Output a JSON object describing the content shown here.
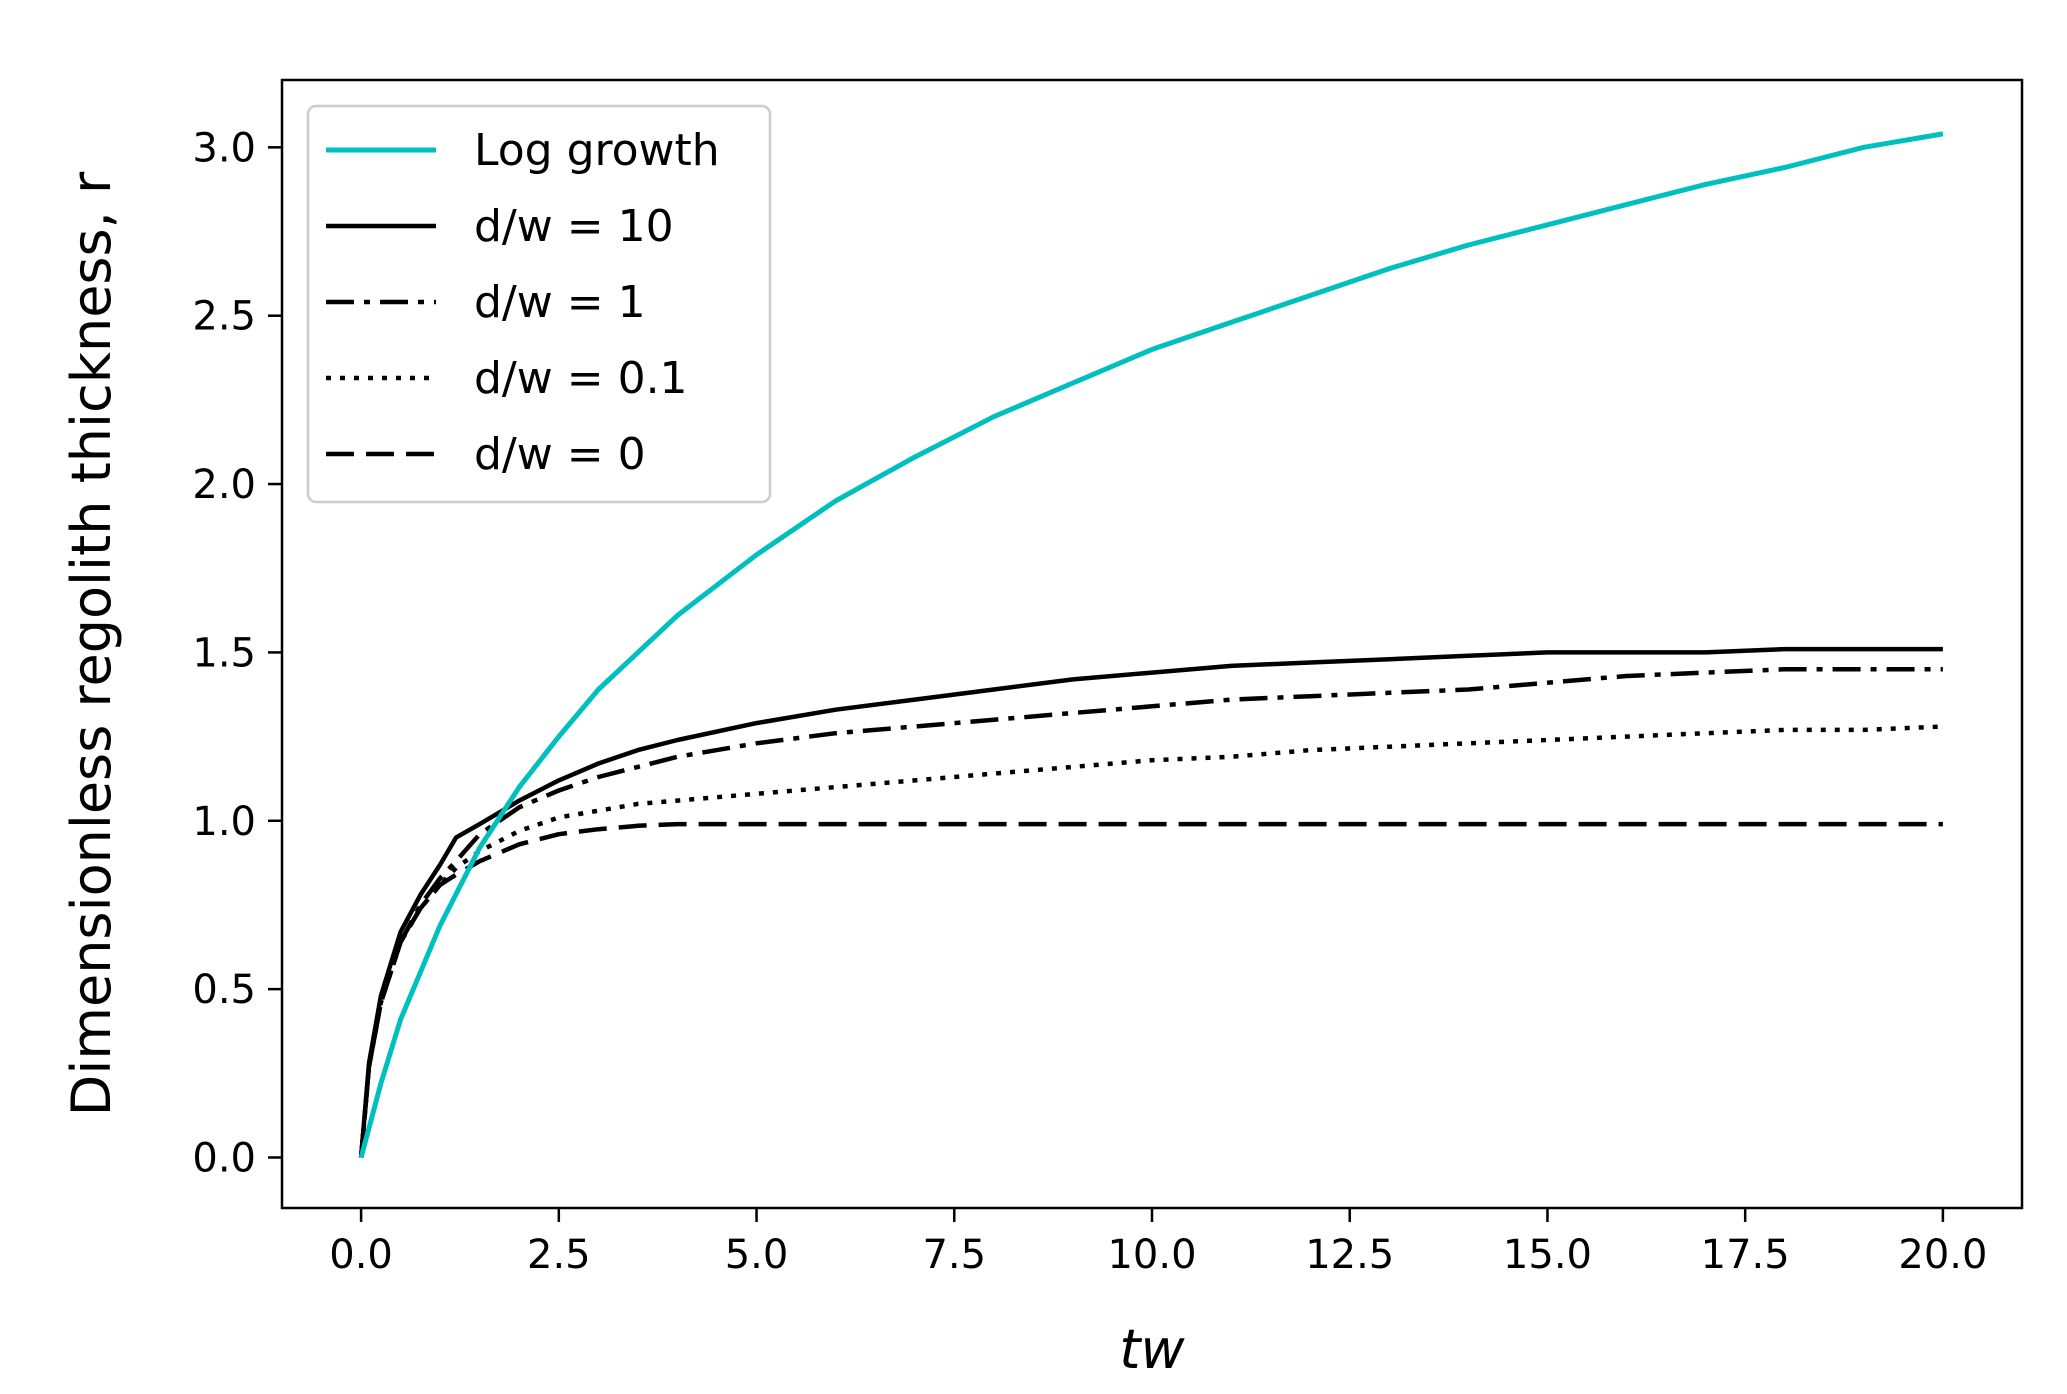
{
  "chart_data": {
    "type": "line",
    "title": "",
    "xlabel": "tw",
    "ylabel": "Dimensionless regolith thickness, r",
    "xlim": [
      -1.0,
      21.0
    ],
    "ylim": [
      -0.15,
      3.2
    ],
    "xticks": [
      0.0,
      2.5,
      5.0,
      7.5,
      10.0,
      12.5,
      15.0,
      17.5,
      20.0
    ],
    "xtick_labels": [
      "0.0",
      "2.5",
      "5.0",
      "7.5",
      "10.0",
      "12.5",
      "15.0",
      "17.5",
      "20.0"
    ],
    "yticks": [
      0.0,
      0.5,
      1.0,
      1.5,
      2.0,
      2.5,
      3.0
    ],
    "ytick_labels": [
      "0.0",
      "0.5",
      "1.0",
      "1.5",
      "2.0",
      "2.5",
      "3.0"
    ],
    "grid": false,
    "legend_position": "top-left",
    "series": [
      {
        "name": "Log growth",
        "color": "#00bfbf",
        "style": "solid",
        "x": [
          0,
          0.25,
          0.5,
          1,
          1.5,
          2,
          2.5,
          3,
          4,
          5,
          6,
          7,
          8,
          9,
          10,
          11,
          12,
          13,
          14,
          15,
          16,
          17,
          18,
          19,
          20
        ],
        "y": [
          0,
          0.22,
          0.41,
          0.69,
          0.92,
          1.1,
          1.25,
          1.39,
          1.61,
          1.79,
          1.95,
          2.08,
          2.2,
          2.3,
          2.4,
          2.48,
          2.56,
          2.64,
          2.71,
          2.77,
          2.83,
          2.89,
          2.94,
          3.0,
          3.04
        ]
      },
      {
        "name": "d/w = 10",
        "color": "#000000",
        "style": "solid",
        "x": [
          0,
          0.1,
          0.25,
          0.5,
          0.75,
          1.0,
          1.2,
          1.5,
          2.0,
          2.5,
          3.0,
          3.5,
          4.0,
          5.0,
          6.0,
          7.0,
          8.0,
          9.0,
          10.0,
          11.0,
          12.0,
          13.0,
          14.0,
          15.0,
          16.0,
          17.0,
          18.0,
          19.0,
          20.0
        ],
        "y": [
          0,
          0.28,
          0.48,
          0.67,
          0.78,
          0.87,
          0.95,
          0.99,
          1.06,
          1.12,
          1.17,
          1.21,
          1.24,
          1.29,
          1.33,
          1.36,
          1.39,
          1.42,
          1.44,
          1.46,
          1.47,
          1.48,
          1.49,
          1.5,
          1.5,
          1.5,
          1.51,
          1.51,
          1.51
        ]
      },
      {
        "name": "d/w = 1",
        "color": "#000000",
        "style": "dashdot",
        "x": [
          0,
          0.1,
          0.25,
          0.5,
          0.75,
          1.0,
          1.2,
          1.5,
          2.0,
          2.5,
          3.0,
          3.5,
          4.0,
          5.0,
          6.0,
          7.0,
          8.0,
          9.0,
          10.0,
          11.0,
          12.0,
          13.0,
          14.0,
          15.0,
          16.0,
          17.0,
          18.0,
          19.0,
          20.0
        ],
        "y": [
          0,
          0.27,
          0.46,
          0.64,
          0.75,
          0.83,
          0.88,
          0.96,
          1.04,
          1.09,
          1.13,
          1.16,
          1.19,
          1.23,
          1.26,
          1.28,
          1.3,
          1.32,
          1.34,
          1.36,
          1.37,
          1.38,
          1.39,
          1.41,
          1.43,
          1.44,
          1.45,
          1.45,
          1.45
        ]
      },
      {
        "name": "d/w = 0.1",
        "color": "#000000",
        "style": "dotted",
        "x": [
          0,
          0.1,
          0.25,
          0.5,
          0.75,
          1.0,
          1.2,
          1.5,
          2.0,
          2.5,
          3.0,
          3.5,
          4.0,
          5.0,
          6.0,
          7.0,
          8.0,
          9.0,
          10.0,
          11.0,
          12.0,
          13.0,
          14.0,
          15.0,
          16.0,
          17.0,
          18.0,
          19.0,
          20.0
        ],
        "y": [
          0,
          0.27,
          0.46,
          0.64,
          0.74,
          0.81,
          0.86,
          0.91,
          0.97,
          1.01,
          1.03,
          1.05,
          1.06,
          1.08,
          1.1,
          1.12,
          1.14,
          1.16,
          1.18,
          1.19,
          1.21,
          1.22,
          1.23,
          1.24,
          1.25,
          1.26,
          1.27,
          1.27,
          1.28
        ]
      },
      {
        "name": "d/w = 0",
        "color": "#000000",
        "style": "dashed",
        "x": [
          0,
          0.1,
          0.25,
          0.5,
          0.75,
          1.0,
          1.2,
          1.5,
          2.0,
          2.5,
          3.0,
          3.5,
          4.0,
          5.0,
          6.0,
          8.0,
          10.0,
          12.0,
          14.0,
          16.0,
          18.0,
          20.0
        ],
        "y": [
          0,
          0.27,
          0.46,
          0.64,
          0.74,
          0.81,
          0.84,
          0.88,
          0.93,
          0.96,
          0.975,
          0.985,
          0.99,
          0.99,
          0.99,
          0.99,
          0.99,
          0.99,
          0.99,
          0.99,
          0.99,
          0.99
        ]
      }
    ]
  }
}
